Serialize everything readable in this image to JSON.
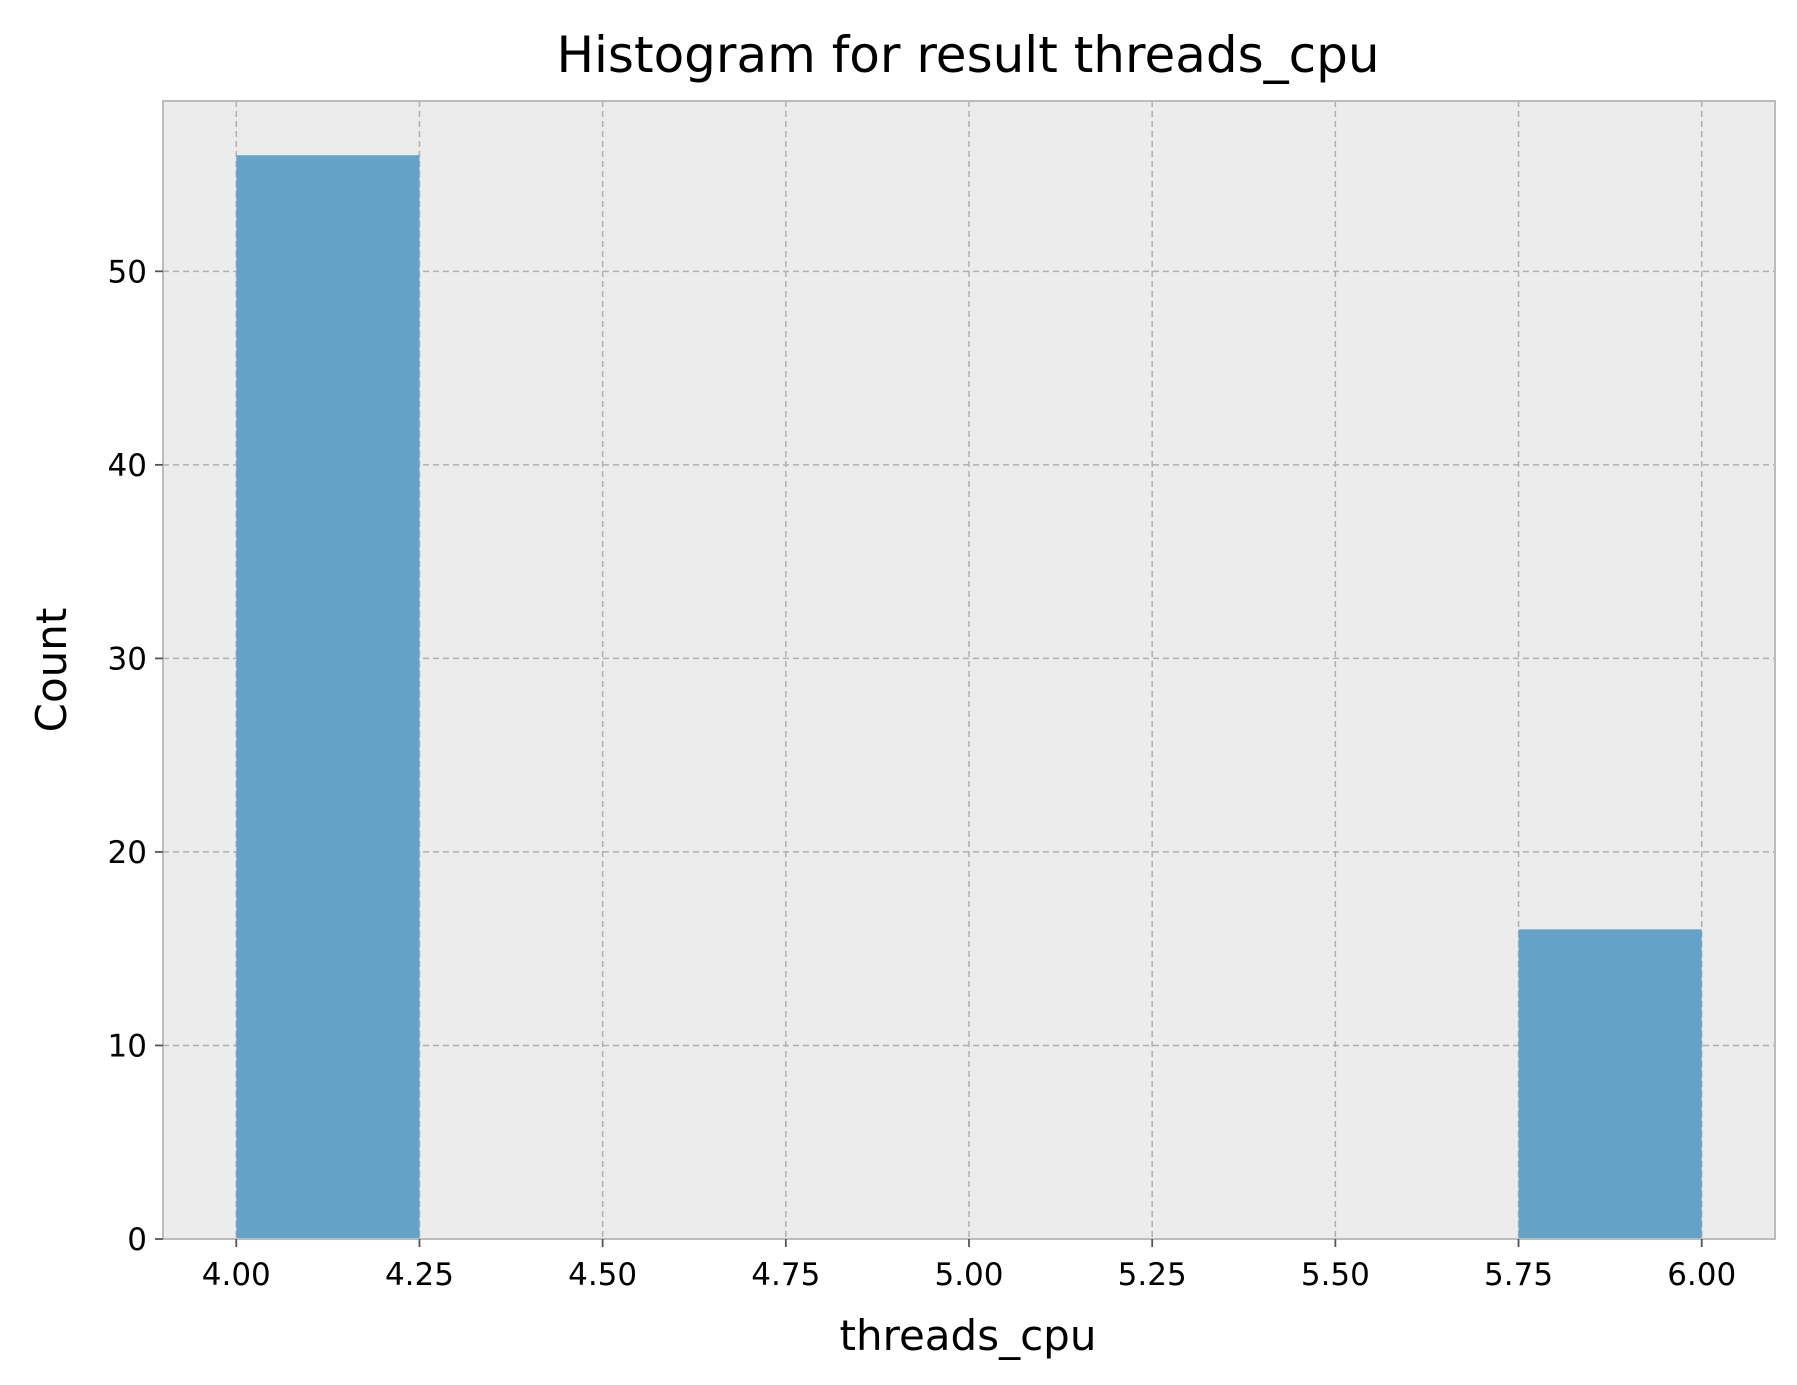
{
  "chart_data": {
    "type": "bar",
    "title": "Histogram for result threads_cpu",
    "xlabel": "threads_cpu",
    "ylabel": "Count",
    "xlim": [
      3.9,
      6.1
    ],
    "ylim": [
      0,
      58.8
    ],
    "xticks": [
      "4.00",
      "4.25",
      "4.50",
      "4.75",
      "5.00",
      "5.25",
      "5.50",
      "5.75",
      "6.00"
    ],
    "yticks": [
      "0",
      "10",
      "20",
      "30",
      "40",
      "50"
    ],
    "bins": [
      {
        "x0": 4.0,
        "x1": 4.25,
        "count": 56
      },
      {
        "x0": 4.25,
        "x1": 4.5,
        "count": 0
      },
      {
        "x0": 4.5,
        "x1": 4.75,
        "count": 0
      },
      {
        "x0": 4.75,
        "x1": 5.0,
        "count": 0
      },
      {
        "x0": 5.0,
        "x1": 5.25,
        "count": 0
      },
      {
        "x0": 5.25,
        "x1": 5.5,
        "count": 0
      },
      {
        "x0": 5.5,
        "x1": 5.75,
        "count": 0
      },
      {
        "x0": 5.75,
        "x1": 6.0,
        "count": 16
      }
    ],
    "grid": true,
    "colors": {
      "bar": "#64a2c8",
      "plot_background": "#ececec",
      "axes_edge": "#bcbcbc"
    }
  }
}
